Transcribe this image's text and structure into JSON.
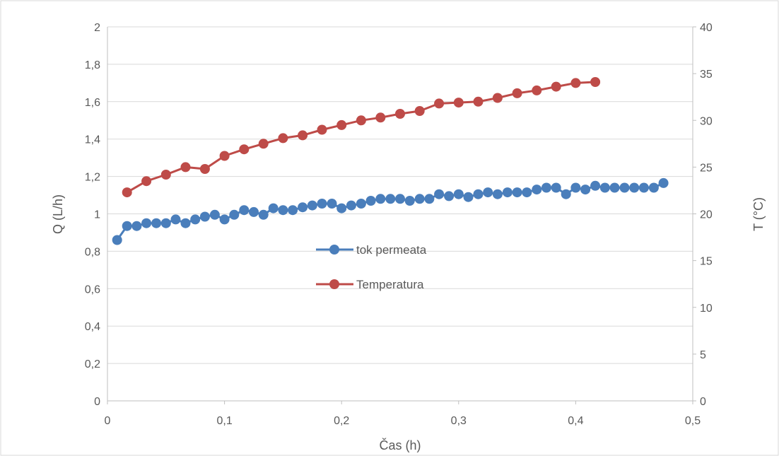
{
  "chart_data": {
    "type": "scatter",
    "xlabel": "Čas (h)",
    "ylabel_left": "Q (L/h)",
    "ylabel_right": "T (°C)",
    "xlim": [
      0,
      0.5
    ],
    "ylim_left": [
      0,
      2
    ],
    "ylim_right": [
      0,
      40
    ],
    "x_ticks": [
      "0",
      "0,1",
      "0,2",
      "0,3",
      "0,4",
      "0,5"
    ],
    "y_left_ticks": [
      "0",
      "0,2",
      "0,4",
      "0,6",
      "0,8",
      "1",
      "1,2",
      "1,4",
      "1,6",
      "1,8",
      "2"
    ],
    "y_right_ticks": [
      "0",
      "5",
      "10",
      "15",
      "20",
      "25",
      "30",
      "35",
      "40"
    ],
    "grid": "horizontal",
    "legend_position": "center",
    "series": [
      {
        "name": "tok permeata",
        "axis": "left",
        "color": "#4a7ebb",
        "x": [
          0.0083,
          0.0167,
          0.025,
          0.0333,
          0.0417,
          0.05,
          0.0583,
          0.0667,
          0.075,
          0.0833,
          0.0917,
          0.1,
          0.1083,
          0.1167,
          0.125,
          0.1333,
          0.1417,
          0.15,
          0.1583,
          0.1667,
          0.175,
          0.1833,
          0.1917,
          0.2,
          0.2083,
          0.2167,
          0.225,
          0.2333,
          0.2417,
          0.25,
          0.2583,
          0.2667,
          0.275,
          0.2833,
          0.2917,
          0.3,
          0.3083,
          0.3167,
          0.325,
          0.3333,
          0.3417,
          0.35,
          0.3583,
          0.3667,
          0.375,
          0.3833,
          0.3917,
          0.4,
          0.4083,
          0.4167,
          0.425,
          0.4333,
          0.4417,
          0.45,
          0.4583,
          0.4667,
          0.475
        ],
        "values": [
          0.86,
          0.935,
          0.935,
          0.95,
          0.95,
          0.95,
          0.97,
          0.95,
          0.97,
          0.985,
          0.995,
          0.97,
          0.995,
          1.02,
          1.01,
          0.995,
          1.03,
          1.02,
          1.02,
          1.035,
          1.045,
          1.055,
          1.055,
          1.03,
          1.045,
          1.055,
          1.07,
          1.08,
          1.08,
          1.08,
          1.07,
          1.08,
          1.08,
          1.105,
          1.095,
          1.105,
          1.09,
          1.105,
          1.115,
          1.105,
          1.115,
          1.115,
          1.115,
          1.13,
          1.14,
          1.14,
          1.105,
          1.14,
          1.13,
          1.15,
          1.14,
          1.14,
          1.14,
          1.14,
          1.14,
          1.14,
          1.165
        ]
      },
      {
        "name": "Temperatura",
        "axis": "right",
        "color": "#be4b48",
        "x": [
          0.0167,
          0.0333,
          0.05,
          0.0667,
          0.0833,
          0.1,
          0.1167,
          0.1333,
          0.15,
          0.1667,
          0.1833,
          0.2,
          0.2167,
          0.2333,
          0.25,
          0.2667,
          0.2833,
          0.3,
          0.3167,
          0.3333,
          0.35,
          0.3667,
          0.3833,
          0.4,
          0.4167
        ],
        "values": [
          22.3,
          23.5,
          24.2,
          25.0,
          24.8,
          26.2,
          26.9,
          27.5,
          28.1,
          28.4,
          29.0,
          29.5,
          30.0,
          30.3,
          30.7,
          31.0,
          31.8,
          31.9,
          32.0,
          32.4,
          32.9,
          33.2,
          33.6,
          34.0,
          34.1
        ]
      }
    ]
  }
}
